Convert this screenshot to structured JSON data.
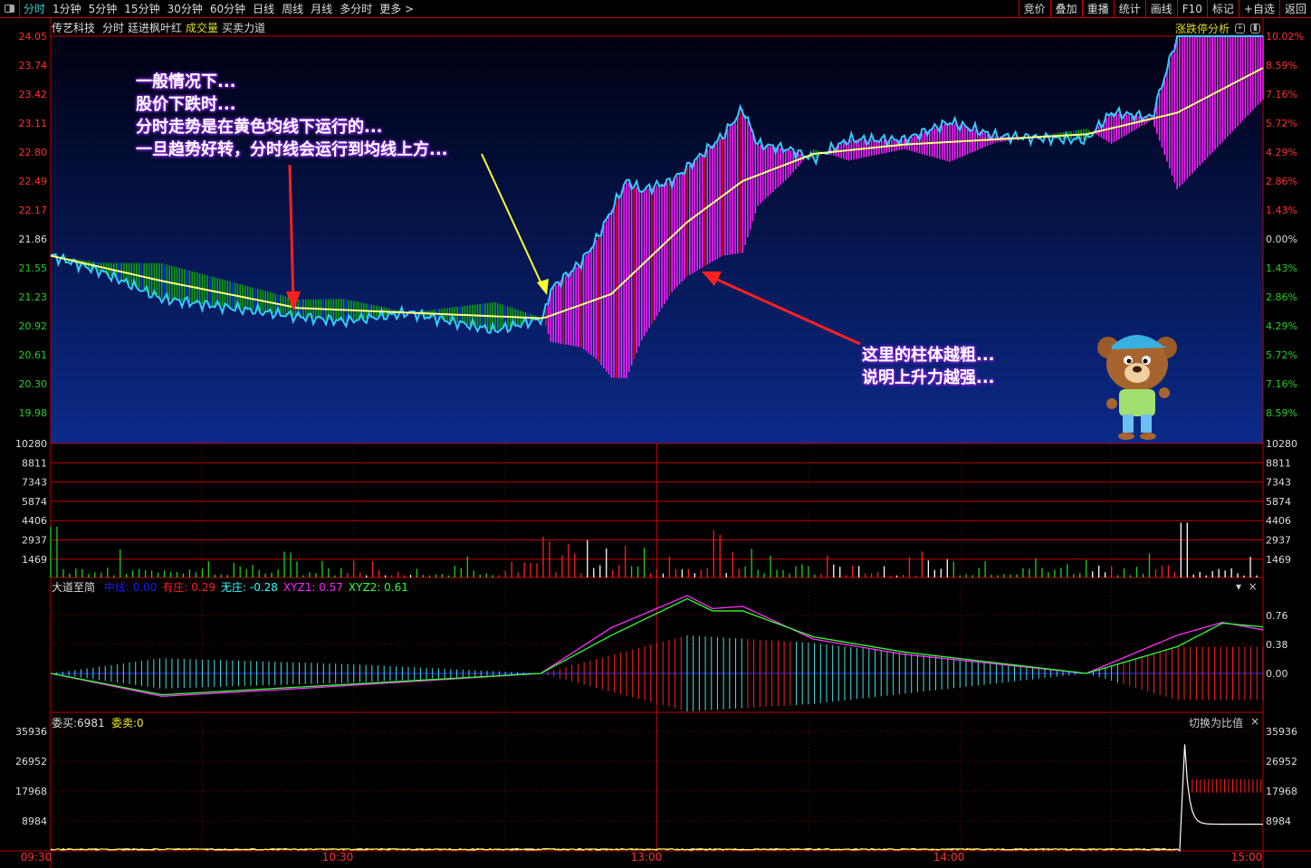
{
  "toolbar": {
    "tabs": [
      "分时",
      "1分钟",
      "5分钟",
      "15分钟",
      "30分钟",
      "60分钟",
      "日线",
      "周线",
      "月线",
      "多分时",
      "更多 >"
    ],
    "active": "分时",
    "right_buttons": [
      "竞价",
      "叠加",
      "重播",
      "统计",
      "画线",
      "F10",
      "标记",
      "+自选",
      "返回"
    ]
  },
  "header": {
    "stock": "传艺科技",
    "mode": "分时",
    "indicator": "廷进枫叶红",
    "volume": "成交量",
    "force": "买卖力道",
    "limit_analysis": "涨跌停分析"
  },
  "main": {
    "price_ticks": [
      "24.05",
      "23.74",
      "23.42",
      "23.11",
      "22.80",
      "22.49",
      "22.17",
      "21.86",
      "21.55",
      "21.23",
      "20.92",
      "20.61",
      "20.30",
      "19.98"
    ],
    "pct_ticks": [
      "10.02%",
      "8.59%",
      "7.16%",
      "5.72%",
      "4.29%",
      "2.86%",
      "1.43%",
      "0.00%",
      "1.43%",
      "2.86%",
      "4.29%",
      "5.72%",
      "7.16%",
      "8.59%"
    ],
    "annotation_left": [
      "一般情况下...",
      "股价下跌时...",
      "分时走势是在黄色均线下运行的...",
      "一旦趋势好转，分时线会运行到均线上方..."
    ],
    "annotation_right": [
      "这里的柱体越粗...",
      "说明上升力越强..."
    ]
  },
  "volume": {
    "ticks": [
      "10280",
      "8811",
      "7343",
      "5874",
      "4406",
      "2937",
      "1469"
    ]
  },
  "indicator": {
    "name": "大道至简",
    "items": [
      {
        "label": "中线",
        "value": "0.00",
        "color": "#1a1aff"
      },
      {
        "label": "有庄",
        "value": "0.29",
        "color": "#ff2020"
      },
      {
        "label": "无庄",
        "value": "-0.28",
        "color": "#3ff"
      },
      {
        "label": "XYZ1",
        "value": "0.57",
        "color": "#f2f"
      },
      {
        "label": "XYZ2",
        "value": "0.61",
        "color": "#3f3"
      }
    ],
    "ticks": [
      "0.76",
      "0.38",
      "0.00"
    ]
  },
  "orders": {
    "buy_label": "委买:6981",
    "sell_label": "委卖:0",
    "switch": "切换为比值",
    "ticks": [
      "35936",
      "26952",
      "17968",
      "8984"
    ]
  },
  "time_axis": [
    "09:30",
    "10:30",
    "13:00",
    "14:00",
    "15:00"
  ],
  "colors": {
    "up": "#ff2020",
    "down": "#00c000",
    "price_line": "#3cf",
    "avg_line": "#ffff80",
    "force_up": "#ff20ff",
    "grid": "#c00000"
  },
  "chart_data": {
    "type": "line",
    "base_price": 21.86,
    "ylim": [
      19.98,
      24.05
    ],
    "price": {
      "minute": [
        0,
        10,
        22,
        49,
        58,
        71,
        88,
        97.5,
        99,
        105,
        108,
        114,
        117,
        123,
        128,
        133,
        137,
        140,
        146,
        151,
        158,
        169,
        178,
        187,
        205,
        210,
        218,
        223,
        240
      ],
      "value": [
        21.7,
        21.53,
        21.24,
        21.05,
        21.0,
        21.09,
        20.9,
        21.03,
        21.34,
        21.63,
        21.87,
        22.5,
        22.4,
        22.5,
        22.74,
        22.98,
        23.27,
        22.89,
        22.84,
        22.74,
        22.94,
        22.94,
        23.13,
        22.98,
        22.94,
        23.23,
        23.18,
        24.05,
        24.05
      ]
    },
    "avg": {
      "minute": [
        0,
        22,
        49,
        97.5,
        111,
        126,
        137,
        151,
        169,
        205,
        223,
        240
      ],
      "value": [
        21.7,
        21.43,
        21.14,
        21.03,
        21.29,
        22.06,
        22.5,
        22.79,
        22.89,
        23.0,
        23.23,
        23.71
      ]
    }
  }
}
